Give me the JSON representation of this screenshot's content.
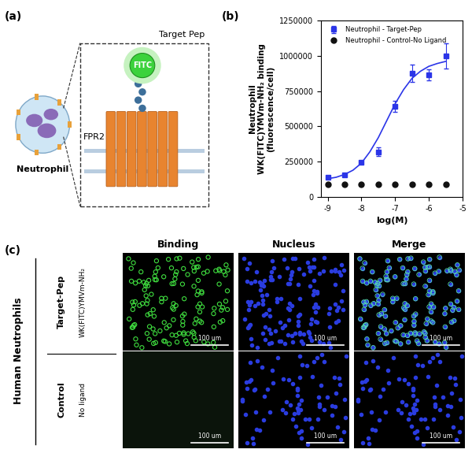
{
  "panel_labels": [
    "(a)",
    "(b)",
    "(c)"
  ],
  "diagram": {
    "cell_label": "Neutrophil",
    "ligand_label": "Target Pep",
    "fluorophore_label": "FITC",
    "receptor_label": "FPR2"
  },
  "chart_data": {
    "type": "scatter",
    "x_label": "log(M)",
    "y_label": "Neutrophil\nWK(FITC)YMVm-NH₂ binding\n(fluorescence/cell)",
    "x": [
      -9,
      -8.5,
      -8,
      -7.5,
      -7,
      -6.5,
      -6,
      -5.5
    ],
    "series": [
      {
        "name": "Neutrophil - Target-Pep",
        "color": "#2b35e8",
        "marker": "square",
        "values": [
          140000,
          155000,
          245000,
          320000,
          640000,
          875000,
          865000,
          1000000
        ],
        "errors": [
          10000,
          10000,
          12000,
          30000,
          40000,
          60000,
          40000,
          90000
        ]
      },
      {
        "name": "Neutrophil - Control-No Ligand",
        "color": "#111111",
        "marker": "circle",
        "values": [
          90000,
          90000,
          90000,
          90000,
          90000,
          90000,
          90000,
          90000
        ]
      },
      {
        "type": "line",
        "color": "#2b35e8",
        "line_style": "solid",
        "x": [
          -9,
          -8.75,
          -8.5,
          -8.25,
          -8,
          -7.75,
          -7.5,
          -7.25,
          -7,
          -6.75,
          -6.5,
          -6.25,
          -6,
          -5.75,
          -5.5
        ],
        "values": [
          130000,
          140000,
          160000,
          190000,
          240000,
          320000,
          420000,
          540000,
          660000,
          760000,
          840000,
          890000,
          925000,
          945000,
          960000
        ]
      }
    ],
    "xlim": [
      -9.2,
      -5
    ],
    "xticks": [
      -9,
      -8,
      -7,
      -6,
      -5
    ],
    "ylim": [
      0,
      1250000
    ],
    "yticks": [
      0,
      250000,
      500000,
      750000,
      1000000,
      1250000
    ],
    "legend": "upper left"
  },
  "micrographs": {
    "group_label": "Human Neutrophils",
    "columns": [
      "Binding",
      "Nucleus",
      "Merge"
    ],
    "rows": [
      {
        "title": "Target-Pep",
        "subtitle": "WK(FITC)YMVm-NH₂"
      },
      {
        "title": "Control",
        "subtitle": "No ligand"
      }
    ],
    "scale_bar": "100 um"
  }
}
